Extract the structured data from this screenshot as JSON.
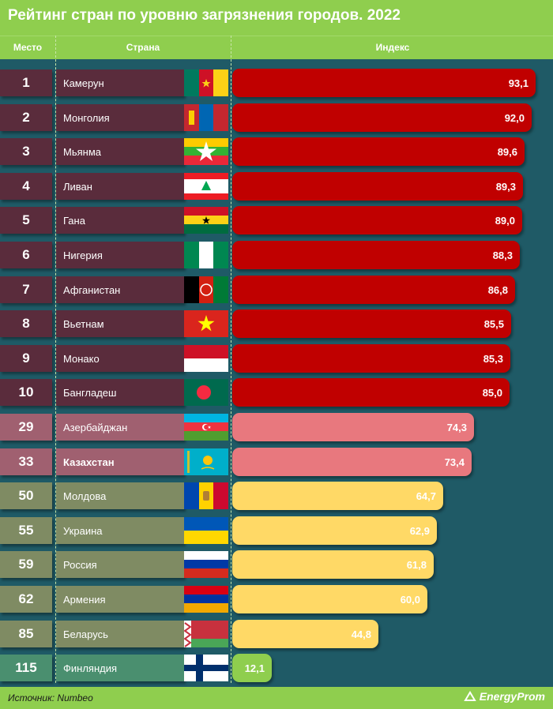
{
  "title": "Рейтинг стран по уровню загрязнения городов. 2022",
  "headers": {
    "place": "Место",
    "country": "Страна",
    "index": "Индекс"
  },
  "source": "Источник: Numbeo",
  "brand": "EnergyProm",
  "colors": {
    "background": "#1f5a66",
    "header": "#8fce4e",
    "top10_rank": "#5a2c3c",
    "top10_bar": "#c00000",
    "mid_rank": "#a06070",
    "mid_bar": "#e8787e",
    "low_rank": "#7f8b63",
    "low_bar": "#ffd966",
    "best_rank": "#4a8f6f",
    "best_bar": "#8fce4e"
  },
  "chart_data": {
    "type": "bar",
    "orientation": "horizontal",
    "rows": [
      {
        "rank": "1",
        "country": "Камерун",
        "value": 93.1,
        "label": "93,1",
        "flag": "cameroon-flag",
        "tier": "top"
      },
      {
        "rank": "2",
        "country": "Монголия",
        "value": 92.0,
        "label": "92,0",
        "flag": "mongolia-flag",
        "tier": "top"
      },
      {
        "rank": "3",
        "country": "Мьянма",
        "value": 89.6,
        "label": "89,6",
        "flag": "myanmar-flag",
        "tier": "top"
      },
      {
        "rank": "4",
        "country": "Ливан",
        "value": 89.3,
        "label": "89,3",
        "flag": "lebanon-flag",
        "tier": "top"
      },
      {
        "rank": "5",
        "country": "Гана",
        "value": 89.0,
        "label": "89,0",
        "flag": "ghana-flag",
        "tier": "top"
      },
      {
        "rank": "6",
        "country": "Нигерия",
        "value": 88.3,
        "label": "88,3",
        "flag": "nigeria-flag",
        "tier": "top"
      },
      {
        "rank": "7",
        "country": "Афганистан",
        "value": 86.8,
        "label": "86,8",
        "flag": "afghanistan-flag",
        "tier": "top"
      },
      {
        "rank": "8",
        "country": "Вьетнам",
        "value": 85.5,
        "label": "85,5",
        "flag": "vietnam-flag",
        "tier": "top"
      },
      {
        "rank": "9",
        "country": "Монако",
        "value": 85.3,
        "label": "85,3",
        "flag": "monaco-flag",
        "tier": "top"
      },
      {
        "rank": "10",
        "country": "Бангладеш",
        "value": 85.0,
        "label": "85,0",
        "flag": "bangladesh-flag",
        "tier": "top"
      },
      {
        "rank": "29",
        "country": "Азербайджан",
        "value": 74.3,
        "label": "74,3",
        "flag": "azerbaijan-flag",
        "tier": "mid"
      },
      {
        "rank": "33",
        "country": "Казахстан",
        "value": 73.4,
        "label": "73,4",
        "flag": "kazakhstan-flag",
        "tier": "mid",
        "highlight": true
      },
      {
        "rank": "50",
        "country": "Молдова",
        "value": 64.7,
        "label": "64,7",
        "flag": "moldova-flag",
        "tier": "low"
      },
      {
        "rank": "55",
        "country": "Украина",
        "value": 62.9,
        "label": "62,9",
        "flag": "ukraine-flag",
        "tier": "low"
      },
      {
        "rank": "59",
        "country": "Россия",
        "value": 61.8,
        "label": "61,8",
        "flag": "russia-flag",
        "tier": "low"
      },
      {
        "rank": "62",
        "country": "Армения",
        "value": 60.0,
        "label": "60,0",
        "flag": "armenia-flag",
        "tier": "low"
      },
      {
        "rank": "85",
        "country": "Беларусь",
        "value": 44.8,
        "label": "44,8",
        "flag": "belarus-flag",
        "tier": "low"
      },
      {
        "rank": "115",
        "country": "Финляндия",
        "value": 12.1,
        "label": "12,1",
        "flag": "finland-flag",
        "tier": "best"
      }
    ]
  }
}
